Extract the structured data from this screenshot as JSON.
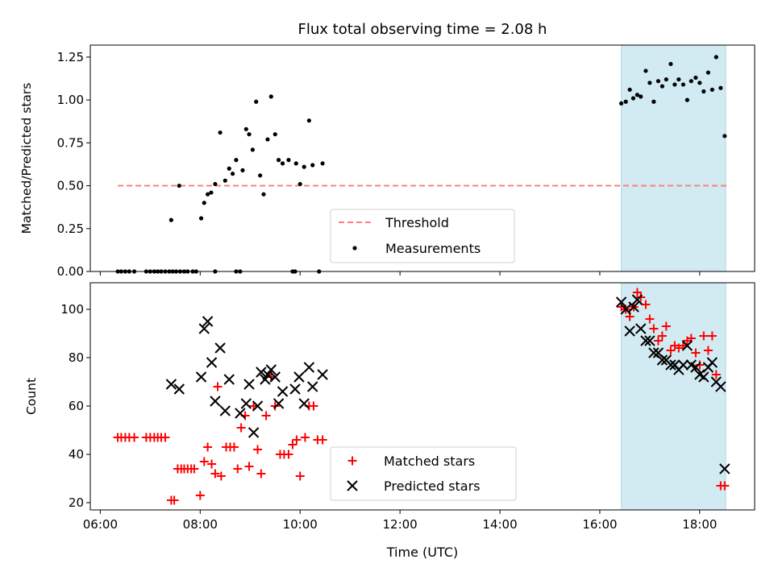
{
  "figure": {
    "title": "Flux total observing time = 2.08 h",
    "xlabel": "Time (UTC)",
    "x_tick_labels": [
      "06:00",
      "08:00",
      "10:00",
      "12:00",
      "14:00",
      "16:00",
      "18:00"
    ],
    "x_ticks_hours": [
      6,
      8,
      10,
      12,
      14,
      16,
      18
    ],
    "xlim_hours": [
      5.8,
      19.1
    ],
    "highlight_span_hours": [
      16.43,
      18.52
    ],
    "colors": {
      "highlight": "#add8e6",
      "threshold": "#ff7f7f",
      "measurements": "#000000",
      "matched": "#ff0000",
      "predicted": "#000000"
    }
  },
  "chart_data": [
    {
      "type": "scatter",
      "panel": "top",
      "ylabel": "Matched/Predicted stars",
      "ylim": [
        0,
        1.32
      ],
      "y_ticks": [
        0,
        0.25,
        0.5,
        0.75,
        1.0,
        1.25
      ],
      "y_tick_labels": [
        "0.00",
        "0.25",
        "0.50",
        "0.75",
        "1.00",
        "1.25"
      ],
      "legend": {
        "placement": "bottom-center",
        "entries": [
          "Threshold",
          "Measurements"
        ]
      },
      "threshold": {
        "name": "Threshold",
        "value": 0.5,
        "x_range_hours": [
          6.35,
          18.55
        ]
      },
      "series": [
        {
          "name": "Measurements",
          "x_hours": [
            6.35,
            6.42,
            6.5,
            6.58,
            6.68,
            6.92,
            7.0,
            7.08,
            7.15,
            7.22,
            7.3,
            7.38,
            7.45,
            7.52,
            7.6,
            7.68,
            7.75,
            7.85,
            7.92,
            8.3,
            8.72,
            8.8,
            9.85,
            9.9,
            10.38,
            7.42,
            7.58,
            8.02,
            8.08,
            8.15,
            8.22,
            8.3,
            8.4,
            8.5,
            8.58,
            8.65,
            8.72,
            8.85,
            8.92,
            8.98,
            9.05,
            9.12,
            9.2,
            9.27,
            9.35,
            9.42,
            9.5,
            9.57,
            9.65,
            9.77,
            9.92,
            10.0,
            10.08,
            10.18,
            10.25,
            10.45,
            16.43,
            16.52,
            16.6,
            16.67,
            16.75,
            16.82,
            16.92,
            17.0,
            17.08,
            17.17,
            17.25,
            17.33,
            17.42,
            17.5,
            17.58,
            17.67,
            17.75,
            17.83,
            17.92,
            18.0,
            18.08,
            18.17,
            18.25,
            18.33,
            18.42,
            18.5
          ],
          "y": [
            0,
            0,
            0,
            0,
            0,
            0,
            0,
            0,
            0,
            0,
            0,
            0,
            0,
            0,
            0,
            0,
            0,
            0,
            0,
            0,
            0,
            0,
            0,
            0,
            0,
            0.3,
            0.5,
            0.31,
            0.4,
            0.45,
            0.46,
            0.51,
            0.81,
            0.53,
            0.6,
            0.57,
            0.65,
            0.59,
            0.83,
            0.8,
            0.71,
            0.99,
            0.56,
            0.45,
            0.77,
            1.02,
            0.8,
            0.65,
            0.63,
            0.65,
            0.63,
            0.51,
            0.61,
            0.88,
            0.62,
            0.63,
            0.98,
            0.99,
            1.06,
            1.01,
            1.03,
            1.02,
            1.17,
            1.1,
            0.99,
            1.11,
            1.08,
            1.12,
            1.21,
            1.09,
            1.12,
            1.09,
            1.0,
            1.11,
            1.13,
            1.1,
            1.05,
            1.16,
            1.06,
            1.25,
            1.07,
            0.79
          ]
        }
      ]
    },
    {
      "type": "scatter",
      "panel": "bottom",
      "ylabel": "Count",
      "ylim": [
        17,
        111
      ],
      "y_ticks": [
        20,
        40,
        60,
        80,
        100
      ],
      "y_tick_labels": [
        "20",
        "40",
        "60",
        "80",
        "100"
      ],
      "legend": {
        "placement": "bottom-center",
        "entries": [
          "Matched stars",
          "Predicted stars"
        ]
      },
      "series": [
        {
          "name": "Matched stars",
          "x_hours": [
            6.35,
            6.42,
            6.5,
            6.58,
            6.68,
            6.92,
            7.0,
            7.08,
            7.15,
            7.22,
            7.3,
            7.42,
            7.48,
            7.55,
            7.62,
            7.68,
            7.75,
            7.82,
            7.88,
            8.0,
            8.08,
            8.15,
            8.23,
            8.3,
            8.35,
            8.42,
            8.52,
            8.6,
            8.68,
            8.75,
            8.82,
            8.9,
            8.98,
            9.07,
            9.15,
            9.22,
            9.32,
            9.42,
            9.5,
            9.6,
            9.68,
            9.77,
            9.85,
            9.93,
            10.0,
            10.1,
            10.18,
            10.27,
            10.35,
            10.45,
            16.43,
            16.52,
            16.6,
            16.68,
            16.75,
            16.82,
            16.92,
            17.0,
            17.08,
            17.17,
            17.25,
            17.33,
            17.42,
            17.5,
            17.58,
            17.67,
            17.75,
            17.83,
            17.92,
            18.0,
            18.08,
            18.17,
            18.25,
            18.33,
            18.42,
            18.5
          ],
          "y": [
            47,
            47,
            47,
            47,
            47,
            47,
            47,
            47,
            47,
            47,
            47,
            21,
            21,
            34,
            34,
            34,
            34,
            34,
            34,
            23,
            37,
            43,
            36,
            32,
            68,
            31,
            43,
            43,
            43,
            34,
            51,
            56,
            35,
            60,
            42,
            32,
            56,
            72,
            60,
            40,
            40,
            40,
            44,
            46,
            31,
            47,
            60,
            60,
            46,
            46,
            101,
            100,
            97,
            101,
            107,
            105,
            102,
            96,
            92,
            87,
            89,
            93,
            83,
            85,
            84,
            85,
            87,
            88,
            82,
            77,
            89,
            83,
            89,
            73,
            27,
            27
          ]
        },
        {
          "name": "Predicted stars",
          "x_hours": [
            7.42,
            7.58,
            8.02,
            8.08,
            8.15,
            8.23,
            8.3,
            8.4,
            8.5,
            8.58,
            8.8,
            8.92,
            8.98,
            9.07,
            9.15,
            9.22,
            9.3,
            9.35,
            9.42,
            9.5,
            9.57,
            9.65,
            9.9,
            9.98,
            10.08,
            10.18,
            10.25,
            10.45,
            16.43,
            16.52,
            16.6,
            16.68,
            16.75,
            16.82,
            16.92,
            17.0,
            17.08,
            17.17,
            17.25,
            17.33,
            17.42,
            17.5,
            17.58,
            17.67,
            17.75,
            17.83,
            17.92,
            18.0,
            18.08,
            18.17,
            18.25,
            18.33,
            18.42,
            18.5
          ],
          "y": [
            69,
            67,
            72,
            92,
            95,
            78,
            62,
            84,
            58,
            71,
            57,
            61,
            69,
            49,
            60,
            74,
            71,
            73,
            75,
            72,
            61,
            66,
            67,
            72,
            61,
            76,
            68,
            73,
            103,
            100,
            91,
            101,
            104,
            92,
            87,
            87,
            82,
            82,
            79,
            79,
            77,
            77,
            75,
            77,
            85,
            77,
            76,
            73,
            72,
            76,
            78,
            70,
            68,
            34
          ]
        }
      ]
    }
  ]
}
